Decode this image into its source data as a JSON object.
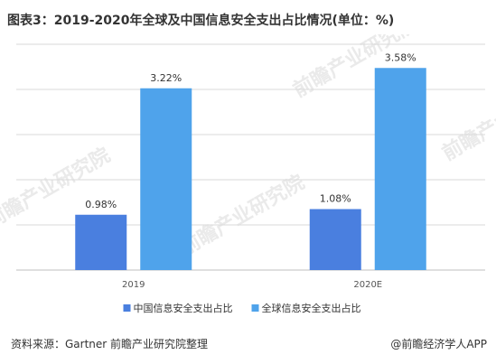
{
  "title": "图表3：2019-2020年全球及中国信息安全支出占比情况(单位：%)",
  "chart_data": {
    "type": "bar",
    "categories": [
      "2019",
      "2020E"
    ],
    "series": [
      {
        "name": "中国信息安全支出占比",
        "values": [
          0.98,
          1.08
        ],
        "labels": [
          "0.98%",
          "1.08%"
        ],
        "color": "#4a7fdf"
      },
      {
        "name": "全球信息安全支出占比",
        "values": [
          3.22,
          3.58
        ],
        "labels": [
          "3.22%",
          "3.58%"
        ],
        "color": "#4fa3eb"
      }
    ],
    "ylim": [
      0,
      4
    ],
    "grid": true,
    "legend": "bottom"
  },
  "footer": {
    "source": "资料来源：Gartner 前瞻产业研究院整理",
    "brand": "@前瞻经济学人APP"
  },
  "watermark": {
    "text": "前瞻产业研究院"
  }
}
